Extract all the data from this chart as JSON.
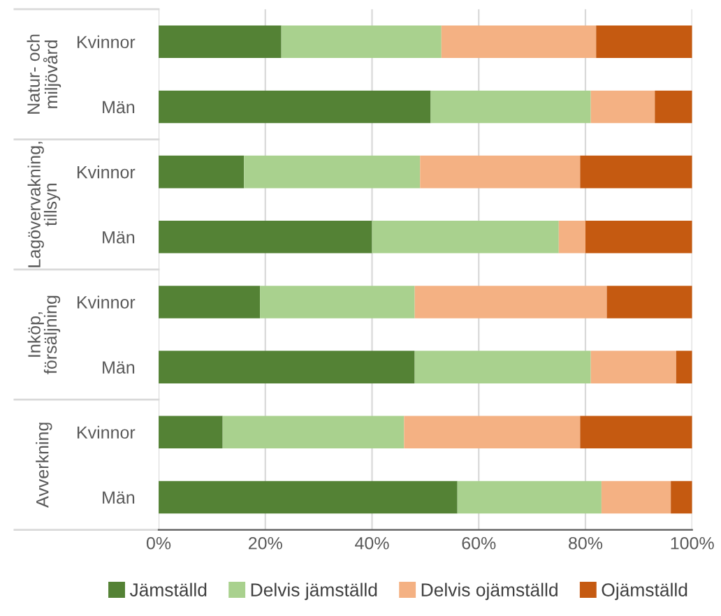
{
  "chart_data": {
    "type": "bar",
    "orientation": "horizontal",
    "stacked": true,
    "categories": [
      "Kvinnor",
      "Män",
      "Kvinnor",
      "Män",
      "Kvinnor",
      "Män",
      "Kvinnor",
      "Män"
    ],
    "series": [
      {
        "name": "Jämställd",
        "color": "#548235",
        "values": [
          23,
          51,
          16,
          40,
          19,
          48,
          12,
          56
        ]
      },
      {
        "name": "Delvis jämställd",
        "color": "#a9d18e",
        "values": [
          30,
          30,
          33,
          35,
          29,
          33,
          34,
          27
        ]
      },
      {
        "name": "Delvis ojämställd",
        "color": "#f4b183",
        "values": [
          29,
          12,
          30,
          5,
          36,
          16,
          33,
          13
        ]
      },
      {
        "name": "Ojämställd",
        "color": "#c55a11",
        "values": [
          18,
          7,
          21,
          20,
          16,
          3,
          21,
          4
        ]
      }
    ],
    "annotations": [
      "Natur- och\nmiljövård",
      "Lagövervakning,\ntillsyn",
      "Inköp,\nförsäljning",
      "Avverkning"
    ],
    "xlim": [
      0,
      100
    ],
    "xticks": [
      {
        "value": 0,
        "label": "0%"
      },
      {
        "value": 20,
        "label": "20%"
      },
      {
        "value": 40,
        "label": "40%"
      },
      {
        "value": 60,
        "label": "60%"
      },
      {
        "value": 80,
        "label": "80%"
      },
      {
        "value": 100,
        "label": "100%"
      }
    ],
    "grid": "x",
    "legend": "bottom"
  }
}
